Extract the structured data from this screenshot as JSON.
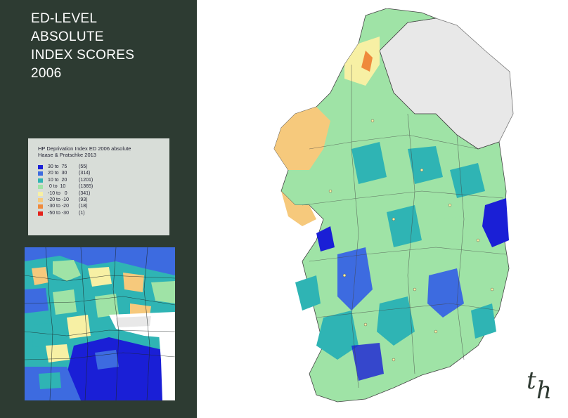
{
  "title_lines": [
    "ED-LEVEL",
    "ABSOLUTE",
    "INDEX SCORES",
    "2006"
  ],
  "legend": {
    "heading_line1": "HP Deprivation Index ED 2006 absolute",
    "heading_line2": "Haase & Pratschke 2013",
    "rows": [
      {
        "range": "30 to  75",
        "count": "(55)",
        "color": "#1a1fd6"
      },
      {
        "range": "20 to  30",
        "count": "(314)",
        "color": "#3d6be0"
      },
      {
        "range": "10 to  20",
        "count": "(1201)",
        "color": "#2fb4b4"
      },
      {
        "range": " 0 to  10",
        "count": "(1365)",
        "color": "#9fe3a6"
      },
      {
        "range": "-10 to   0",
        "count": "(341)",
        "color": "#f7f0a4"
      },
      {
        "range": "-20 to -10",
        "count": "(93)",
        "color": "#f6c97c"
      },
      {
        "range": "-30 to -20",
        "count": "(18)",
        "color": "#ef8a3c"
      },
      {
        "range": "-50 to -30",
        "count": "(1)",
        "color": "#e4221b"
      }
    ]
  },
  "colors": {
    "sidebar": "#2d3b32",
    "northern_ireland": "#e8e8e8",
    "very_high": "#1a1fd6",
    "high": "#3d6be0",
    "above_avg": "#2fb4b4",
    "avg_pos": "#9fe3a6",
    "avg_neg": "#f7f0a4",
    "below_avg": "#f6c97c",
    "disadvantaged": "#ef8a3c",
    "very_disadvantaged": "#e4221b"
  },
  "logo": {
    "t": "t",
    "h": "h"
  }
}
